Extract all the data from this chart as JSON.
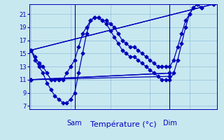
{
  "xlabel": "Température (°c)",
  "background_color": "#c8e8f0",
  "grid_color": "#90c0d8",
  "line_color": "#0000bb",
  "marker": "D",
  "markersize": 2.5,
  "linewidth": 0.9,
  "ylim": [
    6.5,
    22.5
  ],
  "xlim": [
    -0.5,
    47
  ],
  "yticks": [
    7,
    9,
    11,
    13,
    15,
    17,
    19,
    21
  ],
  "sam_x": 11,
  "dim_x": 35,
  "series": [
    {
      "x": [
        0,
        1,
        2,
        3,
        4,
        5,
        6,
        7,
        8,
        9,
        10,
        11,
        12,
        13,
        14,
        15,
        16,
        17,
        18,
        19,
        20,
        21,
        22,
        23,
        24,
        25,
        26,
        27,
        28,
        29,
        30,
        31,
        32,
        33,
        34,
        35,
        36,
        37,
        38,
        39,
        40,
        41,
        42,
        43,
        44,
        45,
        46
      ],
      "y": [
        15.5,
        14.5,
        13.5,
        13,
        12,
        11,
        11,
        11,
        11,
        12,
        13,
        14,
        16,
        18,
        19,
        20,
        20.5,
        20.5,
        20,
        20,
        19.5,
        19,
        18,
        17,
        16.5,
        16,
        16,
        15.5,
        15,
        14.5,
        14,
        13.5,
        13,
        13,
        13,
        13,
        14,
        16,
        18,
        20,
        21,
        22,
        22.5,
        22,
        null,
        null,
        null
      ]
    },
    {
      "x": [
        0,
        1,
        2,
        3,
        4,
        5,
        6,
        7,
        8,
        9,
        10,
        11,
        12,
        13,
        14,
        15,
        16,
        17,
        18,
        19,
        20,
        21,
        22,
        23,
        24,
        25,
        26,
        27,
        28,
        29,
        30,
        31,
        32,
        33,
        34,
        35,
        36,
        37,
        38,
        39,
        40,
        41,
        42,
        43,
        44,
        45,
        46
      ],
      "y": [
        15.5,
        14,
        13,
        12,
        10.5,
        9.5,
        8.5,
        8,
        7.5,
        7.5,
        8,
        9,
        12,
        15,
        18,
        20,
        20.5,
        20.5,
        20,
        19.5,
        18.5,
        17.5,
        16.5,
        15.5,
        15,
        14.5,
        14.5,
        14,
        13.5,
        13,
        12.5,
        12,
        11.5,
        11,
        11,
        11,
        12,
        14,
        16.5,
        19,
        21,
        22,
        22.5,
        22,
        null,
        null,
        null
      ]
    },
    {
      "x": [
        0,
        46
      ],
      "y": [
        15.5,
        22.5
      ]
    },
    {
      "x": [
        0,
        46
      ],
      "y": [
        15.5,
        22.5
      ]
    },
    {
      "x": [
        0,
        35
      ],
      "y": [
        11,
        12
      ]
    },
    {
      "x": [
        0,
        35
      ],
      "y": [
        11,
        12
      ]
    },
    {
      "x": [
        0,
        35
      ],
      "y": [
        11,
        11.5
      ]
    }
  ]
}
